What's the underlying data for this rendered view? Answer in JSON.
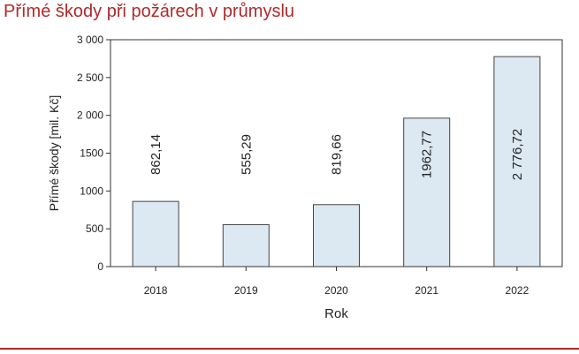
{
  "title": "Přímé škody při požárech v průmyslu",
  "colors": {
    "title": "#b02a2a",
    "bar_fill": "#dce9f3",
    "bar_stroke": "#444444",
    "axis": "#333333",
    "rule": "#b02a2a"
  },
  "chart_data": {
    "type": "bar",
    "categories": [
      "2018",
      "2019",
      "2020",
      "2021",
      "2022"
    ],
    "values": [
      862.14,
      555.29,
      819.66,
      1962.77,
      2776.72
    ],
    "data_labels": [
      "862,14",
      "555,29",
      "819,66",
      "1962,77",
      "2 776,72"
    ],
    "xlabel": "Rok",
    "ylabel": "Přímé škody [mil. Kč]",
    "ylim": [
      0,
      3000
    ],
    "yticks": [
      0,
      500,
      1000,
      1500,
      2000,
      2500,
      3000
    ],
    "ytick_labels": [
      "0",
      "500",
      "1000",
      "1500",
      "2 000",
      "2 500",
      "3 000"
    ],
    "grid": false,
    "legend": "none"
  }
}
